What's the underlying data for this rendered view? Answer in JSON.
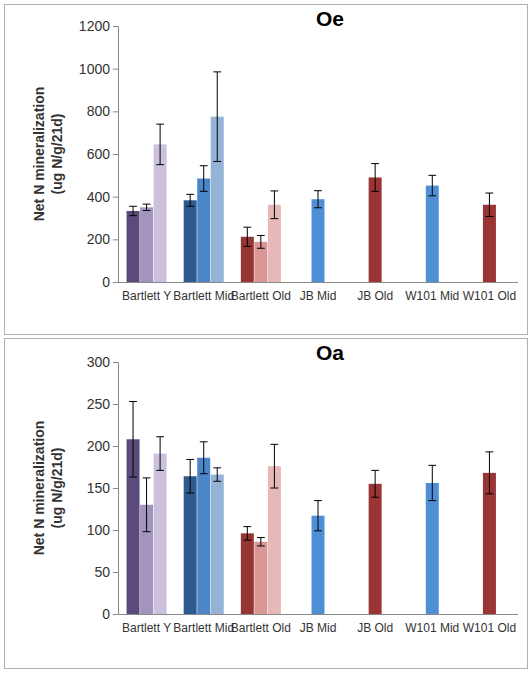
{
  "chart_data": [
    {
      "type": "bar",
      "title": "Oe",
      "y_label": [
        "Net N mineralization",
        "(ug N/g/21d)"
      ],
      "categories": [
        "Bartlett Y",
        "Bartlett Mid",
        "Bartlett Old",
        "JB Mid",
        "JB Old",
        "W101 Mid",
        "W101 Old"
      ],
      "series": [
        {
          "colors": [
            "#5b4b7d",
            "#2f5a8e",
            "#943634",
            null,
            null,
            null,
            null
          ],
          "values": [
            333,
            383,
            212,
            null,
            null,
            null,
            null
          ],
          "errors": [
            22,
            28,
            45,
            null,
            null,
            null,
            null
          ]
        },
        {
          "colors": [
            "#a294bd",
            "#4a86c8",
            "#d99694",
            "#4f8fd6",
            "#9b3535",
            "#4f8fd6",
            "#9b3535"
          ],
          "values": [
            350,
            485,
            188,
            388,
            490,
            452,
            362
          ],
          "errors": [
            15,
            60,
            30,
            40,
            65,
            48,
            55
          ]
        },
        {
          "colors": [
            "#ccc1dd",
            "#95b3d7",
            "#e6b9b8",
            null,
            null,
            null,
            null
          ],
          "values": [
            645,
            775,
            362,
            null,
            null,
            null,
            null
          ],
          "errors": [
            95,
            210,
            65,
            null,
            null,
            null,
            null
          ]
        }
      ],
      "ylim": [
        0,
        1200
      ],
      "yticks": [
        0,
        200,
        400,
        600,
        800,
        1000,
        1200
      ]
    },
    {
      "type": "bar",
      "title": "Oa",
      "y_label": [
        "Net N mineralization",
        "(ug N/g/21d)"
      ],
      "categories": [
        "Bartlett Y",
        "Bartlett Mid",
        "Bartlett Old",
        "JB Mid",
        "JB Old",
        "W101 Mid",
        "W101 Old"
      ],
      "series": [
        {
          "colors": [
            "#5b4b7d",
            "#2f5a8e",
            "#943634",
            null,
            null,
            null,
            null
          ],
          "values": [
            208,
            164,
            96,
            null,
            null,
            null,
            null
          ],
          "errors": [
            45,
            20,
            8,
            null,
            null,
            null,
            null
          ]
        },
        {
          "colors": [
            "#a294bd",
            "#4a86c8",
            "#d99694",
            "#4f8fd6",
            "#9b3535",
            "#4f8fd6",
            "#9b3535"
          ],
          "values": [
            130,
            186,
            86,
            117,
            155,
            156,
            168
          ],
          "errors": [
            32,
            19,
            5,
            18,
            16,
            21,
            25
          ]
        },
        {
          "colors": [
            "#ccc1dd",
            "#95b3d7",
            "#e6b9b8",
            null,
            null,
            null,
            null
          ],
          "values": [
            191,
            166,
            176,
            null,
            null,
            null,
            null
          ],
          "errors": [
            20,
            8,
            26,
            null,
            null,
            null,
            null
          ]
        }
      ],
      "ylim": [
        0,
        300
      ],
      "yticks": [
        0,
        50,
        100,
        150,
        200,
        250,
        300
      ]
    }
  ]
}
